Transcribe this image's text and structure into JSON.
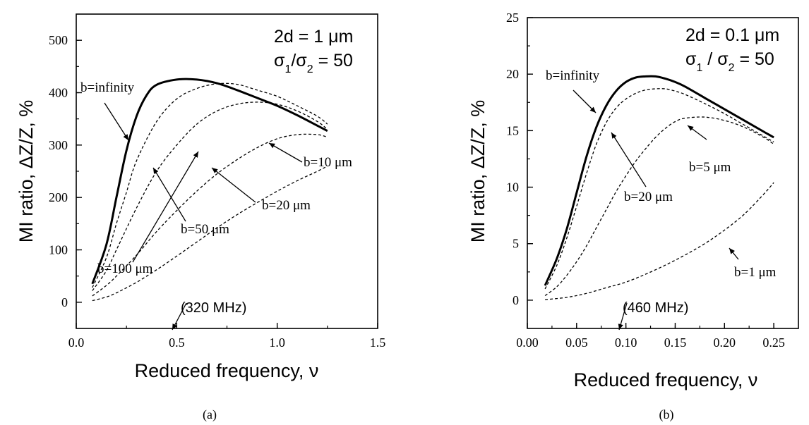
{
  "chart_data": [
    {
      "type": "line",
      "panel_label": "(a)",
      "xlabel": "Reduced frequency, ν",
      "ylabel": "MI ratio,  ΔZ/Z,  %",
      "xlim": [
        0.0,
        1.5
      ],
      "ylim": [
        -50,
        550
      ],
      "xticks": [
        "0.0",
        "0.5",
        "1.0",
        "1.5"
      ],
      "yticks": [
        "0",
        "100",
        "200",
        "300",
        "400",
        "500"
      ],
      "corner_text": [
        "2d = 1 μm",
        "σ1/σ2 = 50"
      ],
      "note": "(320 MHz)",
      "grid": false,
      "series": [
        {
          "name": "b=infinity",
          "style": "solid",
          "x": [
            0.08,
            0.15,
            0.2,
            0.25,
            0.3,
            0.35,
            0.4,
            0.5,
            0.6,
            0.7,
            0.8,
            0.9,
            1.0,
            1.1,
            1.2,
            1.25
          ],
          "y": [
            35,
            110,
            200,
            290,
            355,
            395,
            415,
            425,
            425,
            418,
            405,
            390,
            375,
            357,
            337,
            327
          ]
        },
        {
          "name": "b=100 μm",
          "style": "dashed",
          "x": [
            0.08,
            0.15,
            0.2,
            0.25,
            0.3,
            0.4,
            0.5,
            0.6,
            0.7,
            0.8,
            0.9,
            1.0,
            1.1,
            1.2,
            1.25
          ],
          "y": [
            28,
            85,
            150,
            210,
            270,
            345,
            388,
            408,
            417,
            416,
            405,
            393,
            375,
            355,
            340
          ]
        },
        {
          "name": "b=50 μm",
          "style": "dashed",
          "x": [
            0.08,
            0.15,
            0.2,
            0.3,
            0.4,
            0.5,
            0.6,
            0.7,
            0.8,
            0.9,
            1.0,
            1.1,
            1.2,
            1.25
          ],
          "y": [
            22,
            60,
            100,
            180,
            250,
            300,
            340,
            365,
            378,
            382,
            378,
            365,
            345,
            330
          ]
        },
        {
          "name": "b=20 μm",
          "style": "dashed",
          "x": [
            0.08,
            0.15,
            0.2,
            0.3,
            0.4,
            0.5,
            0.6,
            0.7,
            0.8,
            0.9,
            1.0,
            1.1,
            1.2,
            1.25
          ],
          "y": [
            12,
            32,
            50,
            90,
            135,
            175,
            212,
            245,
            272,
            295,
            312,
            320,
            320,
            315
          ]
        },
        {
          "name": "b=10 μm",
          "style": "dashed",
          "x": [
            0.08,
            0.15,
            0.2,
            0.3,
            0.4,
            0.5,
            0.6,
            0.7,
            0.8,
            0.9,
            1.0,
            1.1,
            1.2,
            1.25
          ],
          "y": [
            3,
            10,
            18,
            38,
            62,
            88,
            115,
            142,
            167,
            190,
            212,
            232,
            250,
            260
          ]
        }
      ]
    },
    {
      "type": "line",
      "panel_label": "(b)",
      "xlabel": "Reduced frequency, ν",
      "ylabel": "MI ratio, ΔZ/Z, %",
      "xlim": [
        0.0,
        0.275
      ],
      "ylim": [
        -2.5,
        25
      ],
      "xticks": [
        "0.00",
        "0.05",
        "0.10",
        "0.15",
        "0.20",
        "0.25"
      ],
      "yticks": [
        "0",
        "5",
        "10",
        "15",
        "20",
        "25"
      ],
      "corner_text": [
        "2d = 0.1 μm",
        "σ1 / σ2 = 50"
      ],
      "note": "(460 MHz)",
      "grid": false,
      "series": [
        {
          "name": "b=infinity",
          "style": "solid",
          "x": [
            0.018,
            0.03,
            0.04,
            0.05,
            0.06,
            0.07,
            0.08,
            0.09,
            0.1,
            0.11,
            0.12,
            0.13,
            0.14,
            0.15,
            0.16,
            0.18,
            0.2,
            0.22,
            0.24,
            0.25
          ],
          "y": [
            1.3,
            3.7,
            6.3,
            9.5,
            12.7,
            15.3,
            17.2,
            18.5,
            19.3,
            19.7,
            19.8,
            19.8,
            19.6,
            19.3,
            18.9,
            17.9,
            16.9,
            15.9,
            14.9,
            14.4
          ]
        },
        {
          "name": "b=20 μm",
          "style": "dashed",
          "x": [
            0.018,
            0.03,
            0.04,
            0.05,
            0.06,
            0.07,
            0.08,
            0.09,
            0.1,
            0.11,
            0.12,
            0.13,
            0.14,
            0.15,
            0.16,
            0.18,
            0.2,
            0.22,
            0.24,
            0.25
          ],
          "y": [
            1.0,
            3.1,
            5.5,
            8.3,
            11.2,
            13.8,
            15.7,
            17.0,
            17.8,
            18.3,
            18.6,
            18.7,
            18.7,
            18.5,
            18.2,
            17.4,
            16.5,
            15.5,
            14.5,
            14.0
          ]
        },
        {
          "name": "b=5 μm",
          "style": "dashed",
          "x": [
            0.018,
            0.03,
            0.04,
            0.05,
            0.06,
            0.07,
            0.08,
            0.09,
            0.1,
            0.11,
            0.12,
            0.13,
            0.14,
            0.15,
            0.16,
            0.18,
            0.2,
            0.22,
            0.24,
            0.25
          ],
          "y": [
            0.4,
            1.2,
            2.2,
            3.4,
            4.8,
            6.4,
            8.0,
            9.6,
            11.0,
            12.3,
            13.4,
            14.4,
            15.2,
            15.8,
            16.1,
            16.2,
            15.9,
            15.3,
            14.4,
            13.8
          ]
        },
        {
          "name": "b=1 μm",
          "style": "dashed",
          "x": [
            0.018,
            0.04,
            0.06,
            0.08,
            0.1,
            0.12,
            0.14,
            0.16,
            0.18,
            0.2,
            0.22,
            0.24,
            0.25
          ],
          "y": [
            0.05,
            0.25,
            0.6,
            1.1,
            1.6,
            2.3,
            3.1,
            4.0,
            5.0,
            6.2,
            7.6,
            9.4,
            10.4
          ]
        }
      ]
    }
  ]
}
